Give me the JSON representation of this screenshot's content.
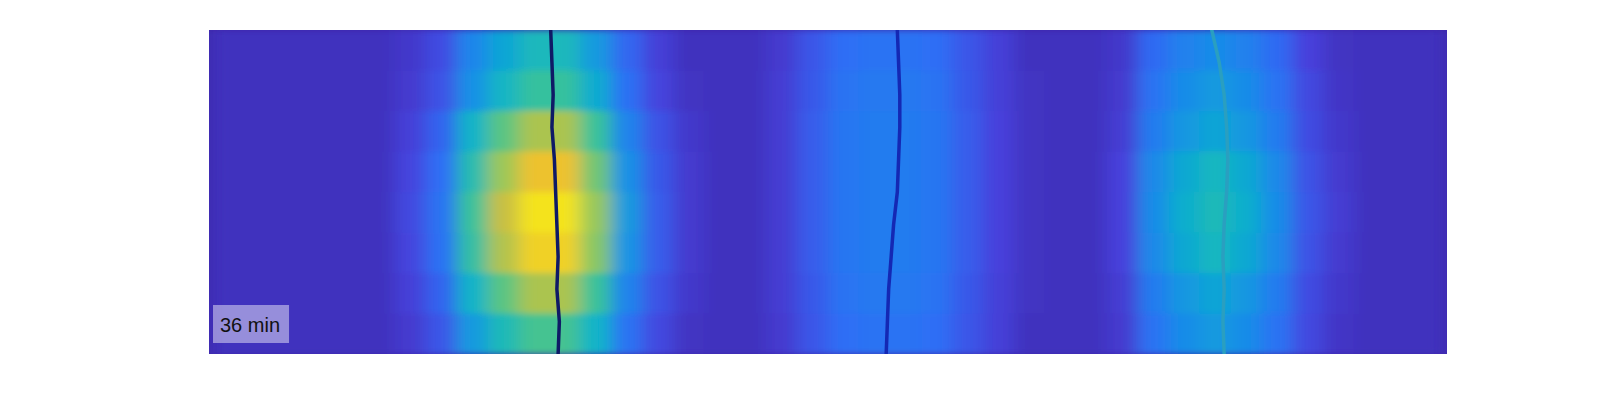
{
  "chart_data": {
    "type": "heatmap",
    "xlim": [
      0,
      100
    ],
    "ylim": [
      100,
      0
    ],
    "tick_labels": false,
    "annotation": "36 min",
    "color_range": [
      0,
      1
    ],
    "cells": [
      [
        0.05,
        0.05,
        0.05,
        0.05,
        0.05,
        0.05,
        0.08,
        0.15,
        0.34,
        0.45,
        0.53,
        0.53,
        0.41,
        0.23,
        0.11,
        0.05,
        0.05,
        0.05,
        0.09,
        0.18,
        0.25,
        0.27,
        0.27,
        0.25,
        0.18,
        0.11,
        0.05,
        0.05,
        0.05,
        0.08,
        0.24,
        0.32,
        0.36,
        0.32,
        0.24,
        0.12,
        0.06,
        0.05,
        0.05,
        0.05
      ],
      [
        0.05,
        0.05,
        0.05,
        0.05,
        0.05,
        0.05,
        0.09,
        0.17,
        0.38,
        0.51,
        0.6,
        0.6,
        0.47,
        0.26,
        0.13,
        0.06,
        0.05,
        0.05,
        0.1,
        0.19,
        0.27,
        0.29,
        0.29,
        0.27,
        0.19,
        0.11,
        0.06,
        0.05,
        0.05,
        0.09,
        0.27,
        0.36,
        0.41,
        0.36,
        0.27,
        0.14,
        0.07,
        0.05,
        0.05,
        0.05
      ],
      [
        0.05,
        0.05,
        0.05,
        0.05,
        0.05,
        0.05,
        0.11,
        0.22,
        0.5,
        0.66,
        0.77,
        0.77,
        0.61,
        0.33,
        0.17,
        0.08,
        0.05,
        0.05,
        0.1,
        0.2,
        0.28,
        0.3,
        0.3,
        0.28,
        0.2,
        0.12,
        0.06,
        0.05,
        0.05,
        0.1,
        0.3,
        0.4,
        0.45,
        0.4,
        0.3,
        0.15,
        0.08,
        0.05,
        0.05,
        0.05
      ],
      [
        0.05,
        0.05,
        0.05,
        0.05,
        0.05,
        0.05,
        0.13,
        0.25,
        0.56,
        0.75,
        0.88,
        0.88,
        0.69,
        0.38,
        0.19,
        0.09,
        0.05,
        0.05,
        0.1,
        0.2,
        0.28,
        0.3,
        0.3,
        0.28,
        0.2,
        0.12,
        0.06,
        0.05,
        0.05,
        0.12,
        0.35,
        0.46,
        0.52,
        0.46,
        0.35,
        0.17,
        0.09,
        0.05,
        0.05,
        0.05
      ],
      [
        0.05,
        0.05,
        0.05,
        0.05,
        0.05,
        0.05,
        0.14,
        0.27,
        0.61,
        0.81,
        0.95,
        0.95,
        0.74,
        0.41,
        0.2,
        0.09,
        0.05,
        0.05,
        0.1,
        0.2,
        0.28,
        0.3,
        0.3,
        0.28,
        0.2,
        0.12,
        0.06,
        0.05,
        0.05,
        0.12,
        0.36,
        0.48,
        0.54,
        0.48,
        0.36,
        0.18,
        0.1,
        0.05,
        0.05,
        0.05
      ],
      [
        0.05,
        0.05,
        0.05,
        0.05,
        0.05,
        0.05,
        0.13,
        0.26,
        0.59,
        0.78,
        0.91,
        0.91,
        0.72,
        0.39,
        0.2,
        0.09,
        0.05,
        0.05,
        0.1,
        0.2,
        0.28,
        0.3,
        0.3,
        0.28,
        0.2,
        0.12,
        0.06,
        0.05,
        0.05,
        0.12,
        0.35,
        0.46,
        0.52,
        0.46,
        0.35,
        0.17,
        0.09,
        0.05,
        0.05,
        0.05
      ],
      [
        0.05,
        0.05,
        0.05,
        0.05,
        0.05,
        0.05,
        0.11,
        0.22,
        0.5,
        0.66,
        0.77,
        0.77,
        0.61,
        0.33,
        0.17,
        0.08,
        0.05,
        0.05,
        0.1,
        0.19,
        0.27,
        0.29,
        0.29,
        0.27,
        0.19,
        0.11,
        0.06,
        0.05,
        0.05,
        0.1,
        0.3,
        0.4,
        0.45,
        0.4,
        0.3,
        0.15,
        0.08,
        0.05,
        0.05,
        0.05
      ],
      [
        0.05,
        0.05,
        0.05,
        0.05,
        0.05,
        0.05,
        0.09,
        0.18,
        0.41,
        0.54,
        0.63,
        0.63,
        0.5,
        0.27,
        0.14,
        0.06,
        0.05,
        0.05,
        0.09,
        0.18,
        0.25,
        0.27,
        0.27,
        0.25,
        0.18,
        0.11,
        0.05,
        0.05,
        0.05,
        0.09,
        0.27,
        0.36,
        0.41,
        0.36,
        0.27,
        0.14,
        0.07,
        0.05,
        0.05,
        0.05
      ]
    ],
    "series": [
      {
        "color": "#0f1a66",
        "x": [
          27.6,
          27.7,
          27.8,
          27.7,
          27.9,
          28.0,
          28.1,
          28.2,
          28.1,
          28.3,
          28.2
        ],
        "y": [
          0,
          10,
          20,
          30,
          40,
          50,
          60,
          70,
          80,
          90,
          100
        ]
      },
      {
        "color": "#1428b4",
        "x": [
          55.6,
          55.7,
          55.8,
          55.8,
          55.7,
          55.6,
          55.3,
          55.1,
          54.9,
          54.8,
          54.7
        ],
        "y": [
          0,
          10,
          20,
          30,
          40,
          50,
          60,
          70,
          80,
          90,
          100
        ]
      },
      {
        "color": "#2a9fc0",
        "x": [
          81.0,
          81.6,
          82.0,
          82.2,
          82.3,
          82.2,
          82.0,
          81.9,
          82.0,
          81.9,
          82.0
        ],
        "y": [
          0,
          10,
          20,
          30,
          40,
          50,
          60,
          70,
          80,
          90,
          100
        ]
      }
    ]
  }
}
